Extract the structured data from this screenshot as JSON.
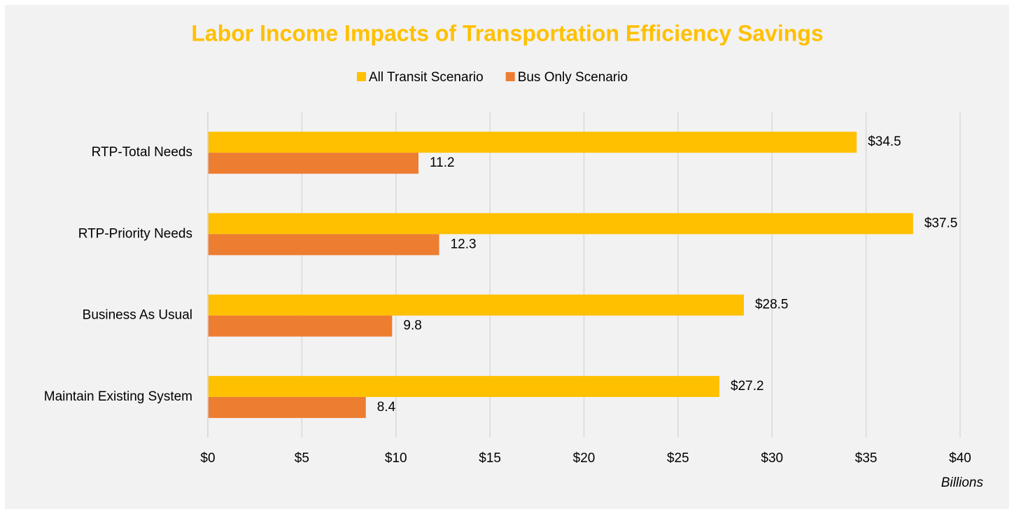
{
  "chart_data": {
    "type": "barh",
    "title": "Labor Income Impacts of Transportation Efficiency Savings",
    "x_label": "Billions",
    "categories": [
      "RTP-Total Needs",
      "RTP-Priority Needs",
      "Business As Usual",
      "Maintain Existing System"
    ],
    "series": [
      {
        "name": "All Transit Scenario",
        "color": "#ffc000",
        "values": [
          34.5,
          37.5,
          28.5,
          27.2
        ],
        "value_labels": [
          "$34.5",
          "$37.5",
          "$28.5",
          "$27.2"
        ]
      },
      {
        "name": "Bus Only Scenario",
        "color": "#ed7d31",
        "values": [
          11.2,
          12.3,
          9.8,
          8.4
        ]
      }
    ],
    "xlim": [
      0,
      40
    ],
    "xticks": [
      {
        "value": 0,
        "label": "$0"
      },
      {
        "value": 5,
        "label": "$5"
      },
      {
        "value": 10,
        "label": "$10"
      },
      {
        "value": 15,
        "label": "$15"
      },
      {
        "value": 20,
        "label": "$20"
      },
      {
        "value": 25,
        "label": "$25"
      },
      {
        "value": 30,
        "label": "$30"
      },
      {
        "value": 35,
        "label": "$35"
      },
      {
        "value": 40,
        "label": "$40"
      }
    ],
    "grid": true,
    "legend": "top",
    "title_color": "#ffc000"
  }
}
